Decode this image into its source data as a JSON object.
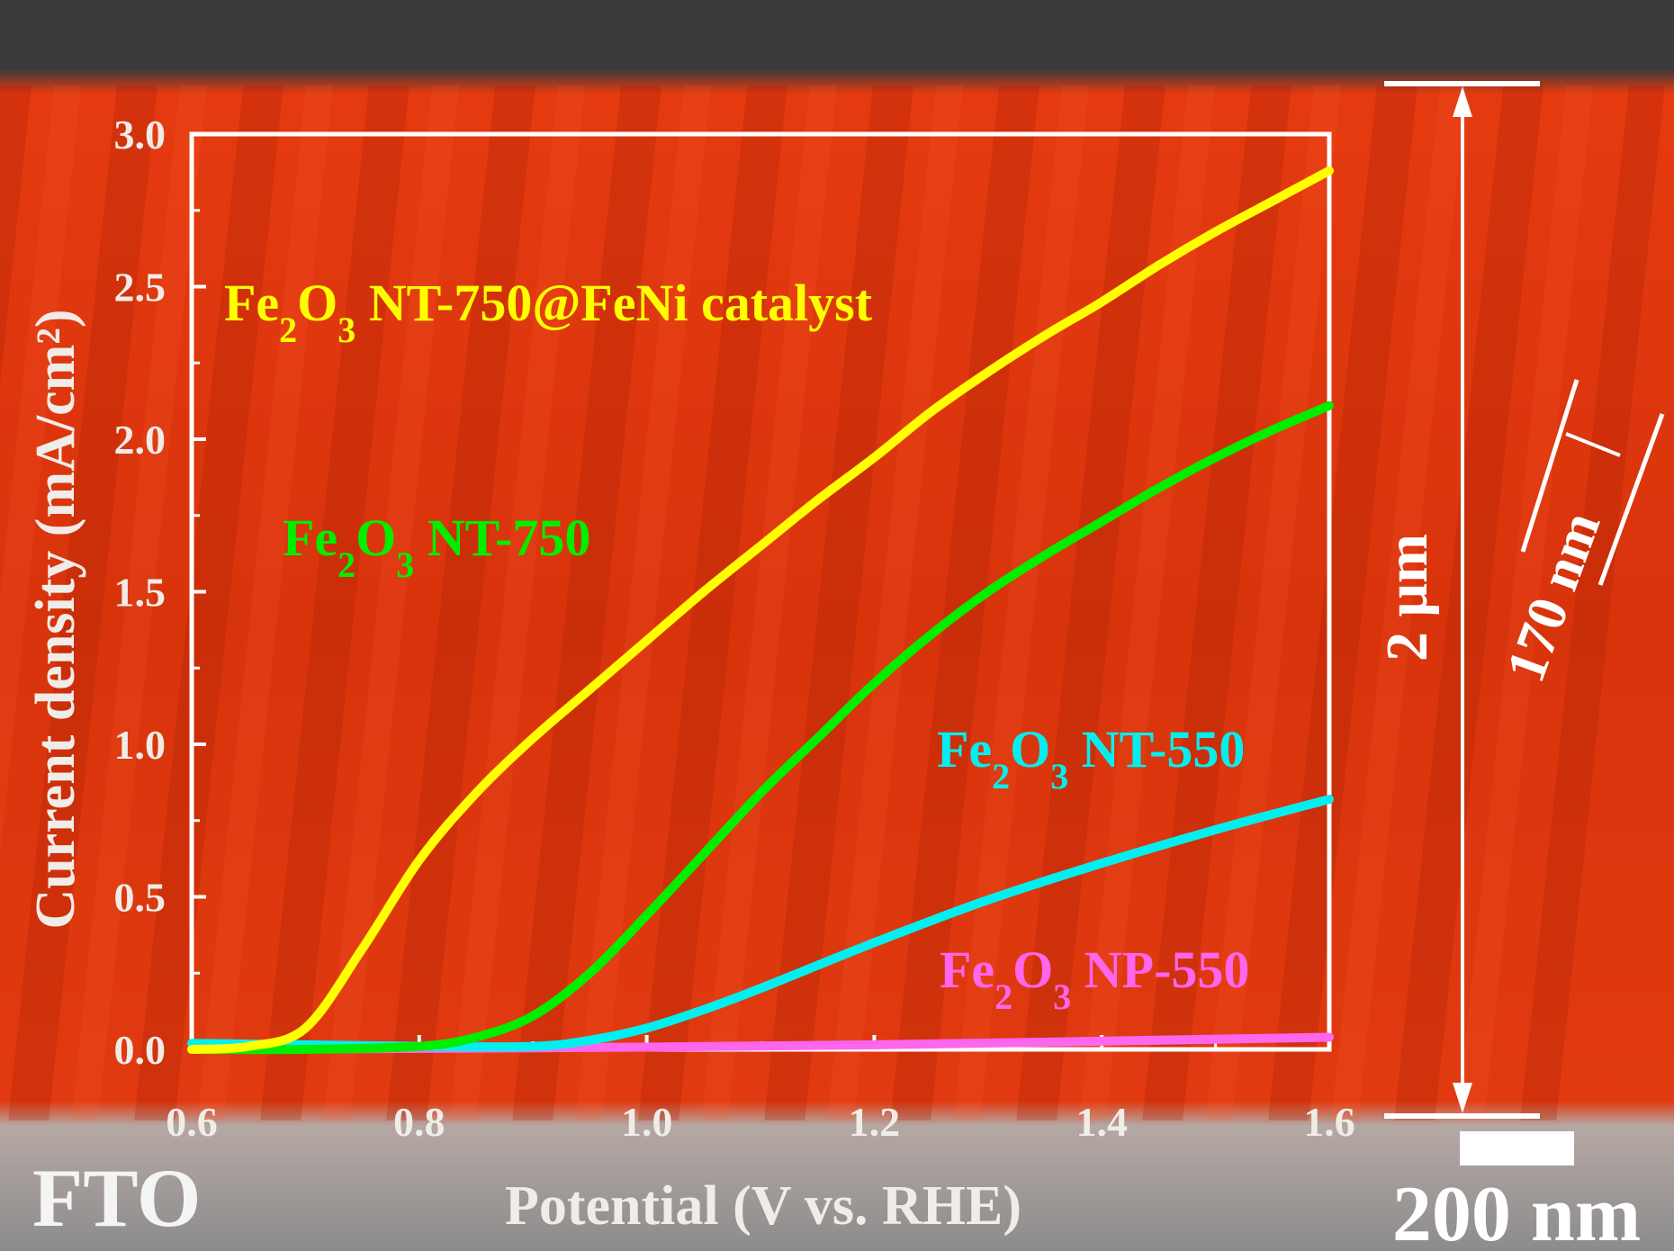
{
  "chart_data": {
    "type": "line",
    "title": "",
    "xlabel": "Potential (V vs. RHE)",
    "ylabel": "Current density (mA/cm²)",
    "xlim": [
      0.6,
      1.6
    ],
    "ylim": [
      0.0,
      3.0
    ],
    "xticks": [
      "0.6",
      "0.8",
      "1.0",
      "1.2",
      "1.4",
      "1.6"
    ],
    "yticks": [
      "0.0",
      "0.5",
      "1.0",
      "1.5",
      "2.0",
      "2.5",
      "3.0"
    ],
    "grid": false,
    "legend": "inline labels next to curves",
    "series": [
      {
        "name": "Fe2O3 NT-750@FeNi catalyst",
        "label_main": "Fe",
        "sub1": "2",
        "mid": "O",
        "sub2": "3",
        "rest": " NT-750@FeNi catalyst",
        "color": "#ffff00",
        "x": [
          0.6,
          0.65,
          0.7,
          0.75,
          0.8,
          0.85,
          0.9,
          0.95,
          1.0,
          1.05,
          1.1,
          1.15,
          1.2,
          1.25,
          1.3,
          1.35,
          1.4,
          1.45,
          1.5,
          1.55,
          1.6
        ],
        "y": [
          0.0,
          0.01,
          0.07,
          0.33,
          0.62,
          0.84,
          1.02,
          1.18,
          1.34,
          1.5,
          1.65,
          1.8,
          1.94,
          2.09,
          2.22,
          2.34,
          2.45,
          2.57,
          2.68,
          2.78,
          2.88
        ]
      },
      {
        "name": "Fe2O3 NT-750",
        "label_main": "Fe",
        "sub1": "2",
        "mid": "O",
        "sub2": "3",
        "rest": " NT-750",
        "color": "#00ee00",
        "x": [
          0.6,
          0.7,
          0.8,
          0.85,
          0.9,
          0.95,
          1.0,
          1.05,
          1.1,
          1.15,
          1.2,
          1.25,
          1.3,
          1.35,
          1.4,
          1.45,
          1.5,
          1.55,
          1.6
        ],
        "y": [
          0.0,
          0.0,
          0.01,
          0.04,
          0.11,
          0.25,
          0.44,
          0.64,
          0.84,
          1.02,
          1.2,
          1.36,
          1.5,
          1.62,
          1.73,
          1.84,
          1.94,
          2.03,
          2.11
        ]
      },
      {
        "name": "Fe2O3 NT-550",
        "label_main": "Fe",
        "sub1": "2",
        "mid": "O",
        "sub2": "3",
        "rest": " NT-550",
        "color": "#00f0f0",
        "x": [
          0.6,
          0.7,
          0.8,
          0.9,
          0.95,
          1.0,
          1.05,
          1.1,
          1.2,
          1.3,
          1.4,
          1.5,
          1.6
        ],
        "y": [
          0.02,
          0.015,
          0.01,
          0.01,
          0.03,
          0.07,
          0.13,
          0.2,
          0.35,
          0.49,
          0.61,
          0.72,
          0.82
        ]
      },
      {
        "name": "Fe2O3 NP-550",
        "label_main": "Fe",
        "sub1": "2",
        "mid": "O",
        "sub2": "3",
        "rest": " NP-550",
        "color": "#ff66ee",
        "x": [
          0.6,
          0.9,
          1.2,
          1.6
        ],
        "y": [
          0.0,
          0.005,
          0.015,
          0.04
        ]
      }
    ]
  },
  "annotations": {
    "substrate_label": "FTO",
    "thickness_label": "2 μm",
    "diameter_label": "170 nm",
    "scale_bar_label": "200 nm"
  }
}
